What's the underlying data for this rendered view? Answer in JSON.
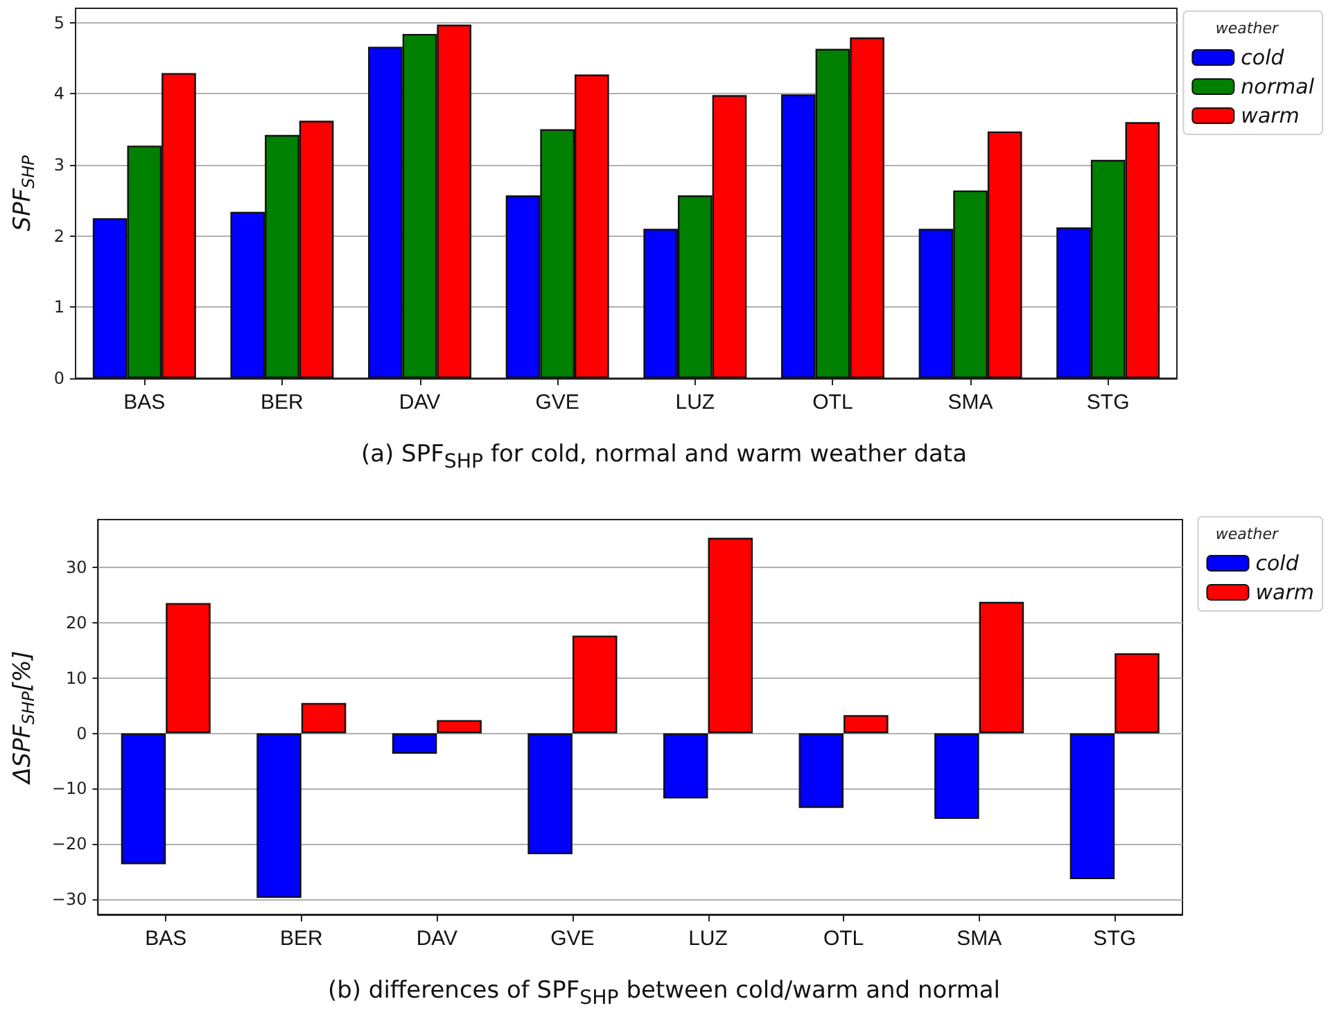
{
  "chart_data": [
    {
      "type": "bar",
      "ylabel": "SPF$_{SHP}$",
      "legend_title": "weather",
      "legend": "top right",
      "grid": "y",
      "categories": [
        "BAS",
        "BER",
        "DAV",
        "GVE",
        "LUZ",
        "OTL",
        "SMA",
        "STG"
      ],
      "series": [
        {
          "name": "cold",
          "color": "#0000ff",
          "values": [
            2.25,
            2.34,
            4.66,
            2.57,
            2.1,
            3.99,
            2.1,
            2.12
          ]
        },
        {
          "name": "normal",
          "color": "#008000",
          "values": [
            3.27,
            3.42,
            4.84,
            3.5,
            2.57,
            4.63,
            2.64,
            3.07
          ]
        },
        {
          "name": "warm",
          "color": "#ff0000",
          "values": [
            4.29,
            3.62,
            4.97,
            4.27,
            3.98,
            4.79,
            3.47,
            3.6
          ]
        }
      ],
      "ylim": [
        0,
        5.2
      ],
      "yticks": [
        0,
        1,
        2,
        3,
        4,
        5
      ],
      "annotations": [
        "(a) SPF$_{SHP}$ for cold, normal and warm weather data"
      ]
    },
    {
      "type": "bar",
      "ylabel": "ΔSPF$_{SHP}$[%]",
      "legend_title": "weather",
      "legend": "top right",
      "grid": "y",
      "categories": [
        "BAS",
        "BER",
        "DAV",
        "GVE",
        "LUZ",
        "OTL",
        "SMA",
        "STG"
      ],
      "series": [
        {
          "name": "cold",
          "color": "#0000ff",
          "values": [
            -23.7,
            -29.8,
            -3.7,
            -21.9,
            -11.8,
            -13.5,
            -15.5,
            -26.4
          ]
        },
        {
          "name": "warm",
          "color": "#ff0000",
          "values": [
            23.6,
            5.5,
            2.4,
            17.7,
            35.4,
            3.3,
            23.8,
            14.5
          ]
        }
      ],
      "ylim": [
        -32.8,
        38.7
      ],
      "yticks": [
        -30,
        -20,
        -10,
        0,
        10,
        20,
        30
      ],
      "annotations": [
        "(b) differences of SPF$_{SHP}$ between cold/warm and normal"
      ]
    }
  ]
}
